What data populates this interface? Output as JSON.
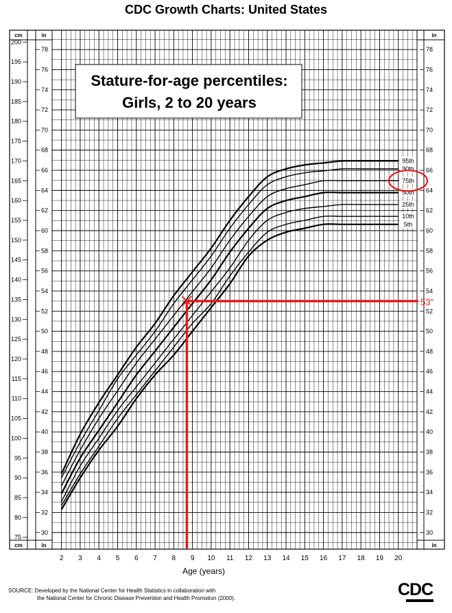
{
  "page": {
    "title": "CDC Growth Charts: United States",
    "source_line1": "SOURCE: Developed by the National Center for Health Statistics in collaboration with",
    "source_line2": "the National Center for Chronic Disease Prevention and Health Promotion (2000).",
    "logo_text": "CDC"
  },
  "chart_data": {
    "type": "line",
    "title_line1": "Stature-for-age percentiles:",
    "title_line2": "Girls, 2 to 20 years",
    "xlabel": "Age (years)",
    "x_ticks": [
      2,
      3,
      4,
      5,
      6,
      7,
      8,
      9,
      10,
      11,
      12,
      13,
      14,
      15,
      16,
      17,
      18,
      19,
      20
    ],
    "xlim": [
      1.5,
      21
    ],
    "ylim_cm": [
      72,
      203
    ],
    "cm_ticks": [
      75,
      80,
      85,
      90,
      95,
      100,
      105,
      110,
      115,
      120,
      125,
      130,
      135,
      140,
      145,
      150,
      155,
      160,
      165,
      170,
      175,
      180,
      185,
      190,
      195,
      200
    ],
    "in_ticks": [
      30,
      32,
      34,
      36,
      38,
      40,
      42,
      44,
      46,
      48,
      50,
      52,
      54,
      56,
      58,
      60,
      62,
      64,
      66,
      68,
      70,
      72,
      74,
      76,
      78
    ],
    "left_unit": "cm",
    "right_unit": "in",
    "grid": true,
    "x": [
      2,
      3,
      4,
      5,
      6,
      7,
      8,
      9,
      10,
      11,
      12,
      13,
      14,
      15,
      16,
      17,
      18,
      19,
      20
    ],
    "series": [
      {
        "name": "95th",
        "values": [
          91,
          101,
          109,
          116,
          123,
          129,
          136,
          142,
          148,
          155,
          161,
          166,
          168,
          169,
          169.5,
          170,
          170,
          170,
          170
        ]
      },
      {
        "name": "90th",
        "values": [
          90,
          99,
          107,
          115,
          121,
          127,
          134,
          140,
          146,
          153,
          159,
          164,
          166,
          167,
          167.5,
          168,
          168,
          168,
          168
        ]
      },
      {
        "name": "75th",
        "values": [
          88,
          97,
          105,
          112,
          119,
          125,
          131,
          137,
          143,
          150,
          156,
          161,
          163,
          164,
          165,
          165,
          165,
          165,
          165
        ]
      },
      {
        "name": "50th",
        "values": [
          86,
          95,
          102,
          109,
          116,
          122,
          128,
          134,
          140,
          147,
          153,
          158,
          160,
          161,
          162,
          162,
          162,
          162,
          162
        ]
      },
      {
        "name": "25th",
        "values": [
          84,
          93,
          100,
          107,
          113,
          119,
          125,
          131,
          137,
          143,
          150,
          155,
          157,
          158,
          158.5,
          159,
          159,
          159,
          159
        ]
      },
      {
        "name": "10th",
        "values": [
          83,
          91,
          98,
          105,
          111,
          117,
          123,
          129,
          134,
          141,
          147,
          152,
          154,
          155,
          156,
          156,
          156,
          156,
          156
        ]
      },
      {
        "name": "5th",
        "values": [
          82,
          90,
          97,
          103,
          110,
          116,
          121,
          127,
          133,
          139,
          146,
          150,
          152,
          153,
          154,
          154,
          154,
          154,
          154
        ]
      }
    ],
    "annotation": {
      "label": "53\"",
      "age": 8.7,
      "height_in": 53,
      "highlighted_percentile": "75th",
      "color": "#e41c1c"
    }
  }
}
